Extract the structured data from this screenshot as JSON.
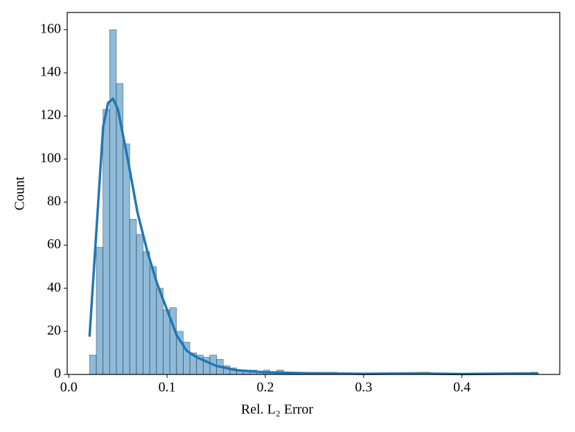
{
  "chart_data": {
    "type": "histogram",
    "xlabel": "Rel. L₂ Error",
    "ylabel": "Count",
    "bins": [
      0.0212,
      0.028,
      0.0348,
      0.0416,
      0.0484,
      0.0552,
      0.062,
      0.0688,
      0.0756,
      0.0824,
      0.0892,
      0.096,
      0.1028,
      0.1096,
      0.1164,
      0.1232,
      0.13,
      0.1368,
      0.1436,
      0.1504,
      0.1572,
      0.164,
      0.1708,
      0.1776,
      0.1844,
      0.1912,
      0.198,
      0.2048,
      0.2116,
      0.2184,
      0.2252,
      0.232,
      0.2388,
      0.2456,
      0.2524,
      0.2592,
      0.266,
      0.2728,
      0.2796,
      0.2864,
      0.2932,
      0.3,
      0.3068,
      0.3136,
      0.3204,
      0.3272,
      0.334,
      0.3408,
      0.3476,
      0.3544,
      0.3612,
      0.368,
      0.3748,
      0.3816,
      0.3884,
      0.3952,
      0.402,
      0.4088,
      0.4156,
      0.4224,
      0.4292,
      0.436,
      0.4428,
      0.4496,
      0.4564,
      0.4632,
      0.47,
      0.4768
    ],
    "values": [
      9,
      59,
      123,
      160,
      135,
      107,
      72,
      65,
      57,
      50,
      40,
      30,
      31,
      20,
      15,
      10,
      9,
      8,
      9,
      7,
      4,
      3,
      2,
      2,
      2,
      1,
      2,
      1,
      2,
      1,
      0,
      0,
      0,
      1,
      1,
      1,
      1,
      0,
      0,
      0,
      0,
      0,
      0,
      0,
      0,
      0,
      0,
      0,
      0,
      1,
      1,
      0,
      0,
      0,
      0,
      0,
      0,
      0,
      0,
      0,
      0,
      0,
      0,
      0,
      0,
      0,
      1
    ],
    "color": "#1f77b4",
    "kde": {
      "x": [
        0.0212,
        0.03,
        0.035,
        0.04,
        0.045,
        0.05,
        0.06,
        0.07,
        0.08,
        0.09,
        0.1,
        0.11,
        0.12,
        0.13,
        0.14,
        0.15,
        0.17,
        0.2,
        0.25,
        0.3,
        0.35,
        0.4,
        0.4768
      ],
      "values": [
        18,
        80,
        115,
        126,
        128,
        123,
        100,
        75,
        57,
        42,
        30,
        18,
        11,
        8,
        6,
        4,
        2,
        1,
        0.5,
        0.3,
        0.5,
        0.2,
        0.5
      ]
    },
    "xlim": [
      -0.0016,
      0.4996
    ],
    "ylim": [
      0,
      168
    ],
    "xticks": [
      {
        "value": 0,
        "label": "0.0"
      },
      0.1,
      0.2,
      0.3,
      0.4
    ],
    "yticks": [
      0,
      20,
      40,
      60,
      80,
      100,
      120,
      140,
      160
    ]
  }
}
